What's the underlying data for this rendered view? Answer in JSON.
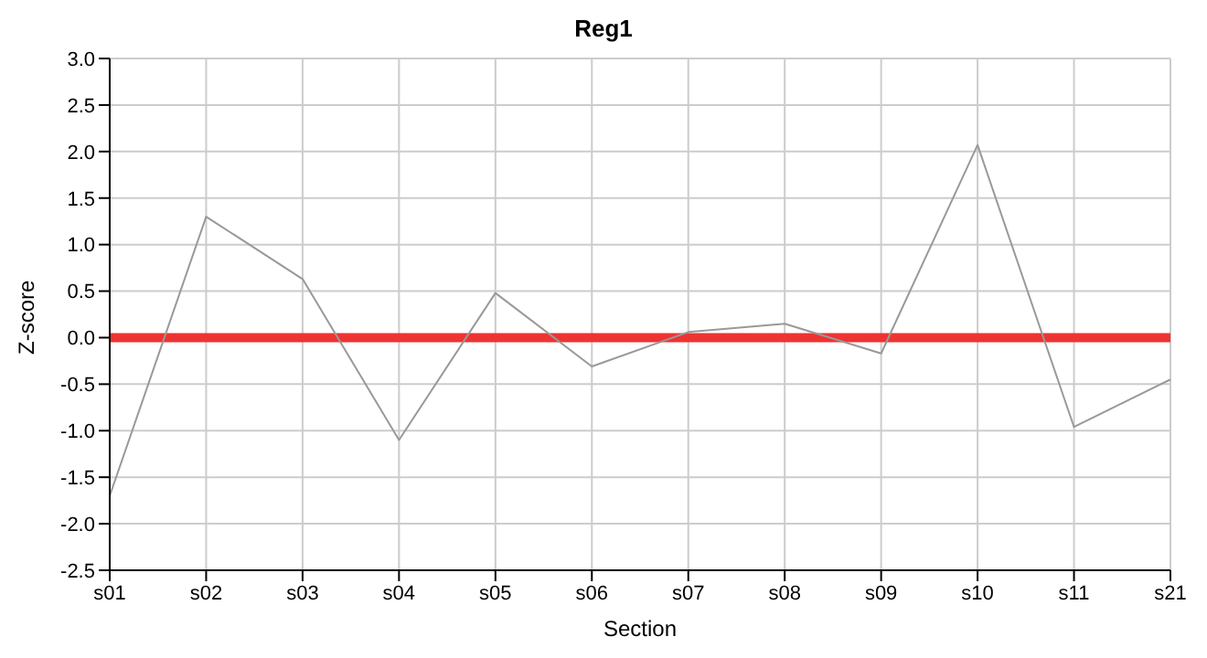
{
  "chart_data": {
    "type": "line",
    "title": "Reg1",
    "xlabel": "Section",
    "ylabel": "Z-score",
    "categories": [
      "s01",
      "s02",
      "s03",
      "s04",
      "s05",
      "s06",
      "s07",
      "s08",
      "s09",
      "s10",
      "s11",
      "s21"
    ],
    "series": [
      {
        "color": "#999999",
        "values": [
          -1.7,
          1.3,
          0.63,
          -1.1,
          0.48,
          -0.31,
          0.06,
          0.15,
          -0.17,
          2.07,
          -0.96,
          -0.45
        ]
      }
    ],
    "ylim": [
      -2.5,
      3
    ],
    "yticks": [
      {
        "value": -2.5,
        "label": "-2.5"
      },
      {
        "value": -2,
        "label": "-2.0"
      },
      {
        "value": -1.5,
        "label": "-1.5"
      },
      {
        "value": -1,
        "label": "-1.0"
      },
      {
        "value": -0.5,
        "label": "-0.5"
      },
      {
        "value": 0,
        "label": "0.0"
      },
      {
        "value": 0.5,
        "label": "0.5"
      },
      {
        "value": 1,
        "label": "1.0"
      },
      {
        "value": 1.5,
        "label": "1.5"
      },
      {
        "value": 2,
        "label": "2.0"
      },
      {
        "value": 2.5,
        "label": "2.5"
      },
      {
        "value": 3,
        "label": "3.0"
      }
    ],
    "ref_lines": [
      {
        "axis": "y",
        "value": 0,
        "color": "#ee3333"
      }
    ],
    "grid": true,
    "marker": "none",
    "line_style": "solid"
  }
}
